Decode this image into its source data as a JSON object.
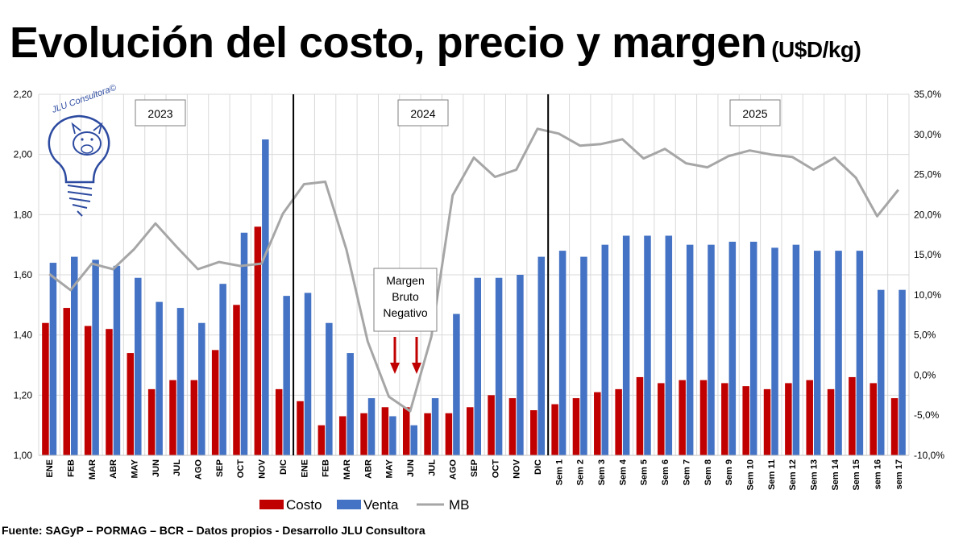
{
  "title": {
    "main": "Evolución del costo, precio y margen",
    "unit": "(U$D/kg)"
  },
  "source": "Fuente: SAGyP – PORMAG – BCR – Datos propios - Desarrollo JLU Consultora",
  "logo_text": "JLU Consultora©",
  "annotation": {
    "lines": [
      "Margen",
      "Bruto",
      "Negativo"
    ]
  },
  "colors": {
    "costo": "#c00000",
    "venta": "#4472c4",
    "mb": "#a6a6a6",
    "arrow": "#c00000"
  },
  "chart_data": {
    "type": "bar",
    "categories": [
      "ENE",
      "FEB",
      "MAR",
      "ABR",
      "MAY",
      "JUN",
      "JUL",
      "AGO",
      "SEP",
      "OCT",
      "NOV",
      "DIC",
      "ENE",
      "FEB",
      "MAR",
      "ABR",
      "MAY",
      "JUN",
      "JUL",
      "AGO",
      "SEP",
      "OCT",
      "NOV",
      "DIC",
      "Sem 1",
      "Sem 2",
      "Sem 3",
      "Sem 4",
      "Sem 5",
      "Sem 6",
      "Sem 7",
      "Sem 8",
      "Sem 9",
      "Sem 10",
      "Sem 11",
      "Sem 12",
      "Sem 13",
      "Sem 14",
      "Sem 15",
      "sem 16",
      "sem 17"
    ],
    "year_labels": [
      "2023",
      "2024",
      "2025"
    ],
    "series": [
      {
        "name": "Costo",
        "axis": "left",
        "values": [
          1.44,
          1.49,
          1.43,
          1.42,
          1.34,
          1.22,
          1.25,
          1.25,
          1.35,
          1.5,
          1.76,
          1.22,
          1.18,
          1.1,
          1.13,
          1.14,
          1.16,
          1.16,
          1.14,
          1.14,
          1.16,
          1.2,
          1.19,
          1.15,
          1.17,
          1.19,
          1.21,
          1.22,
          1.26,
          1.24,
          1.25,
          1.25,
          1.24,
          1.23,
          1.22,
          1.24,
          1.25,
          1.22,
          1.26,
          1.24,
          1.19
        ]
      },
      {
        "name": "Venta",
        "axis": "left",
        "values": [
          1.64,
          1.66,
          1.65,
          1.63,
          1.59,
          1.51,
          1.49,
          1.44,
          1.57,
          1.74,
          2.05,
          1.53,
          1.54,
          1.44,
          1.34,
          1.19,
          1.13,
          1.1,
          1.19,
          1.47,
          1.59,
          1.59,
          1.6,
          1.66,
          1.68,
          1.66,
          1.7,
          1.73,
          1.73,
          1.73,
          1.7,
          1.7,
          1.71,
          1.71,
          1.69,
          1.7,
          1.68,
          1.68,
          1.68,
          1.55,
          1.55
        ]
      },
      {
        "name": "MB",
        "axis": "right",
        "type": "line",
        "values": [
          12.6,
          10.6,
          13.9,
          13.2,
          15.7,
          18.9,
          16.0,
          13.2,
          14.1,
          13.6,
          13.9,
          20.1,
          23.8,
          24.1,
          15.6,
          4.2,
          -2.7,
          -4.5,
          4.8,
          22.4,
          27.1,
          24.7,
          25.6,
          30.7,
          30.1,
          28.6,
          28.8,
          29.4,
          27.0,
          28.2,
          26.4,
          25.9,
          27.3,
          28.0,
          27.5,
          27.2,
          25.6,
          27.1,
          24.6,
          19.8,
          23.1
        ]
      }
    ],
    "y_left": {
      "min": 1.0,
      "max": 2.2,
      "ticks": [
        "1,00",
        "1,20",
        "1,40",
        "1,60",
        "1,80",
        "2,00",
        "2,20"
      ]
    },
    "y_right": {
      "min": -10,
      "max": 35,
      "ticks": [
        "-10,0%",
        "-5,0%",
        "0,0%",
        "5,0%",
        "10,0%",
        "15,0%",
        "20,0%",
        "25,0%",
        "30,0%",
        "35,0%"
      ]
    },
    "grid": true,
    "legend": "bottom"
  }
}
